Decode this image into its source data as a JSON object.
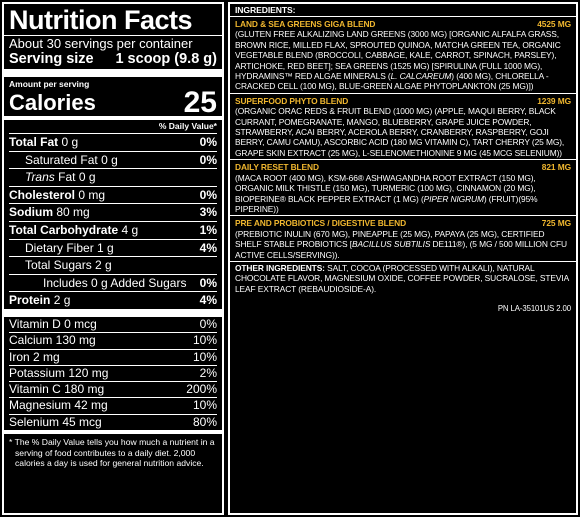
{
  "nutrition": {
    "title": "Nutrition Facts",
    "servings": "About 30 servings per container",
    "serving_size_label": "Serving size",
    "serving_size_value": "1 scoop (9.8 g)",
    "amount_per_serving": "Amount per serving",
    "calories_label": "Calories",
    "calories_value": "25",
    "dv_header": "% Daily Value*",
    "rows": {
      "total_fat": {
        "label": "Total Fat",
        "amount": "0 g",
        "dv": "0%"
      },
      "sat_fat": {
        "label": "Saturated Fat",
        "amount": "0 g",
        "dv": "0%"
      },
      "trans_fat": {
        "label": "Trans",
        "label2": "Fat",
        "amount": "0 g"
      },
      "cholesterol": {
        "label": "Cholesterol",
        "amount": "0 mg",
        "dv": "0%"
      },
      "sodium": {
        "label": "Sodium",
        "amount": "80 mg",
        "dv": "3%"
      },
      "carb": {
        "label": "Total Carbohydrate",
        "amount": "4 g",
        "dv": "1%"
      },
      "fiber": {
        "label": "Dietary Fiber",
        "amount": "1 g",
        "dv": "4%"
      },
      "sugars": {
        "label": "Total Sugars",
        "amount": "2 g"
      },
      "added_sugars": {
        "label": "Includes 0 g Added Sugars",
        "dv": "0%"
      },
      "protein": {
        "label": "Protein",
        "amount": "2 g",
        "dv": "4%"
      }
    },
    "vitamins": [
      {
        "label": "Vitamin D 0 mcg",
        "dv": "0%"
      },
      {
        "label": "Calcium 130 mg",
        "dv": "10%"
      },
      {
        "label": "Iron 2 mg",
        "dv": "10%"
      },
      {
        "label": "Potassium 120 mg",
        "dv": "2%"
      },
      {
        "label": "Vitamin C 180 mg",
        "dv": "200%"
      },
      {
        "label": "Magnesium 42 mg",
        "dv": "10%"
      },
      {
        "label": "Selenium 45 mcg",
        "dv": "80%"
      }
    ],
    "footnote": "* The % Daily Value tells you how much a nutrient in a serving of food contributes to a daily diet. 2,000 calories a day is used for general nutrition advice."
  },
  "ingredients": {
    "title": "INGREDIENTS:",
    "blends": [
      {
        "name": "LAND & SEA GREENS GIGA BLEND",
        "amount": "4525 MG",
        "parts": [
          {
            "t": "(GLUTEN FREE ALKALIZING LAND GREENS (3000 MG) [ORGANIC ALFALFA GRASS, BROWN RICE, MILLED FLAX, SPROUTED QUINOA, MATCHA GREEN TEA, ORGANIC VEGETABLE BLEND (BROCCOLI, CABBAGE, KALE, CARROT, SPINACH, PARSLEY), ARTICHOKE, RED BEET]; SEA GREENS (1525 MG) [SPIRULINA (FULL 1000 MG), HYDRAMINS™ RED ALGAE MINERALS ("
          },
          {
            "t": "L. CALCAREUM",
            "i": true
          },
          {
            "t": ") (400 MG), CHLORELLA - CRACKED CELL (100 MG), BLUE-GREEN ALGAE PHYTOPLANKTON (25 MG)])"
          }
        ]
      },
      {
        "name": "SUPERFOOD PHYTO BLEND",
        "amount": "1239 MG",
        "parts": [
          {
            "t": "(ORGANIC ORAC REDS & FRUIT BLEND (1000 MG) (APPLE, MAQUI BERRY, BLACK CURRANT, POMEGRANATE, MANGO, BLUEBERRY, GRAPE JUICE POWDER, STRAWBERRY, ACAI BERRY, ACEROLA BERRY, CRANBERRY, RASPBERRY, GOJI BERRY, CAMU CAMU), ASCORBIC ACID (180 MG VITAMIN C), TART CHERRY (25 MG), GRAPE SKIN EXTRACT (25 MG), L-SELENOMETHIONINE 9 MG (45 MCG SELENIUM))"
          }
        ]
      },
      {
        "name": "DAILY RESET BLEND",
        "amount": "821 MG",
        "parts": [
          {
            "t": "(MACA ROOT (400 MG), KSM-66® ASHWAGANDHA ROOT EXTRACT (150 MG), ORGANIC MILK THISTLE (150 MG), TURMERIC (100 MG), CINNAMON (20 MG), BIOPERINE® BLACK PEPPER EXTRACT (1 MG) ("
          },
          {
            "t": "PIPER NIGRUM",
            "i": true
          },
          {
            "t": ") (FRUIT)(95% PIPERINE))"
          }
        ]
      },
      {
        "name": "PRE AND PROBIOTICS / DIGESTIVE BLEND",
        "amount": "725 MG",
        "parts": [
          {
            "t": "(PREBIOTIC INULIN (670 MG), PINEAPPLE (25 MG), PAPAYA (25 MG), CERTIFIED SHELF STABLE PROBIOTICS ["
          },
          {
            "t": "BACILLUS SUBTILIS",
            "i": true
          },
          {
            "t": " DE111®), (5 MG / 500 MILLION CFU ACTIVE CELLS/SERVING))."
          }
        ]
      }
    ],
    "other_label": "OTHER INGREDIENTS:",
    "other_text": " SALT, COCOA (PROCESSED WITH ALKALI), NATURAL CHOCOLATE FLAVOR, MAGNESIUM OXIDE, COFFEE POWDER, SUCRALOSE, STEVIA LEAF EXTRACT (REBAUDIOSIDE-A).",
    "part_number": "PN LA-35101US 2.00"
  }
}
